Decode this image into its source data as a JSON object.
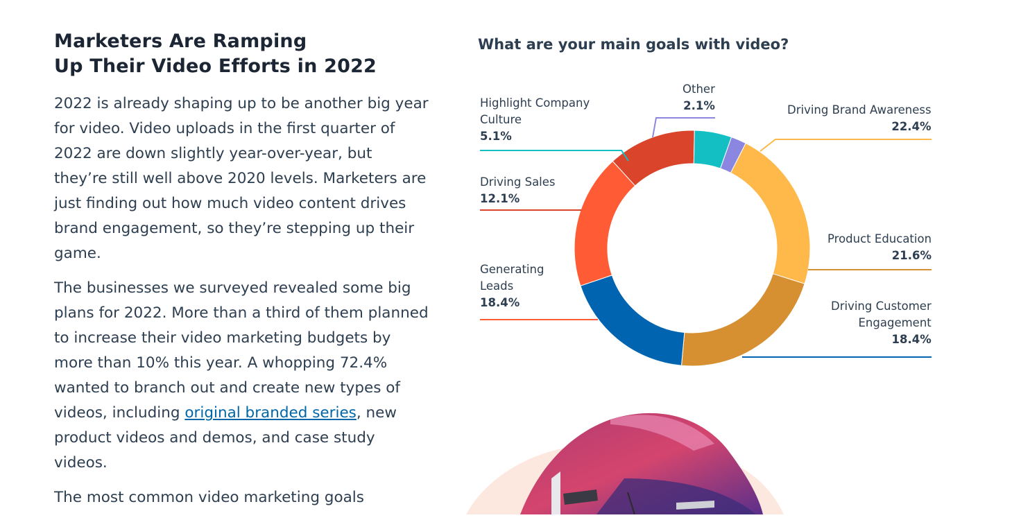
{
  "article": {
    "heading_line1": "Marketers Are Ramping",
    "heading_line2": "Up Their Video Efforts in 2022",
    "paragraph1": "2022 is already shaping up to be another big year for video. Video uploads in the first quarter of 2022 are down slightly year-over-year, but they’re still well above 2020 levels. Marketers are just finding out how much video content drives brand engagement, so they’re stepping up their game.",
    "paragraph2_before_link": "The businesses we surveyed revealed some big plans for 2022. More than a third of them planned to increase their video marketing budgets by more than 10% this year. A whopping 72.4% wanted to branch out and create new types of videos, including ",
    "paragraph2_link": "original branded series",
    "paragraph2_after_link": ", new product videos and demos, and case study videos.",
    "paragraph3": "The most common video marketing goals"
  },
  "chart_data": {
    "type": "pie",
    "title": "What are your main goals with video?",
    "slices": [
      {
        "label": "Driving Brand Awareness",
        "value": 22.4,
        "value_label": "22.4%",
        "color": "#ffb84a"
      },
      {
        "label": "Product Education",
        "value": 21.6,
        "value_label": "21.6%",
        "color": "#d68f31"
      },
      {
        "label": "Driving Customer Engagement",
        "value": 18.4,
        "value_label": "18.4%",
        "color": "#0064b0"
      },
      {
        "label": "Generating Leads",
        "value": 18.4,
        "value_label": "18.4%",
        "color": "#ff5c35"
      },
      {
        "label": "Driving Sales",
        "value": 12.1,
        "value_label": "12.1%",
        "color": "#d9442a"
      },
      {
        "label": "Highlight Company Culture",
        "value": 5.1,
        "value_label": "5.1%",
        "color": "#13bfc3"
      },
      {
        "label": "Other",
        "value": 2.1,
        "value_label": "2.1%",
        "color": "#8b87e0"
      }
    ]
  }
}
